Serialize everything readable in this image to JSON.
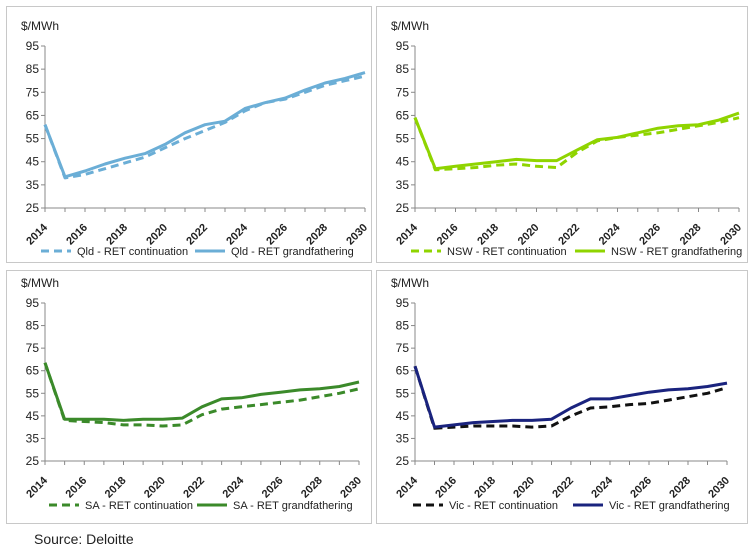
{
  "source": "Source: Deloitte",
  "chart_data": [
    {
      "type": "line",
      "ylabel": "$/MWh",
      "ylim": [
        25,
        95
      ],
      "yticks": [
        25,
        35,
        45,
        55,
        65,
        75,
        85,
        95
      ],
      "x": [
        2014,
        2015,
        2016,
        2017,
        2018,
        2019,
        2020,
        2021,
        2022,
        2023,
        2024,
        2025,
        2026,
        2027,
        2028,
        2029,
        2030
      ],
      "xticks": [
        2014,
        2016,
        2018,
        2020,
        2022,
        2024,
        2026,
        2028,
        2030
      ],
      "legend": "bottom",
      "series": [
        {
          "name": "Qld - RET continuation",
          "style": "dashed",
          "color": "#6baed6",
          "values": [
            61,
            38,
            39.5,
            42,
            44.5,
            47,
            51,
            55,
            58.5,
            62,
            67,
            70.5,
            72,
            75,
            78,
            80,
            82
          ]
        },
        {
          "name": "Qld - RET grandfathering",
          "style": "solid",
          "color": "#6baed6",
          "values": [
            61,
            38.5,
            41,
            44,
            46.5,
            48.5,
            52.5,
            57.5,
            61,
            62.5,
            68,
            70.5,
            72.5,
            76,
            79,
            81,
            83.5
          ]
        }
      ]
    },
    {
      "type": "line",
      "ylabel": "$/MWh",
      "ylim": [
        25,
        95
      ],
      "yticks": [
        25,
        35,
        45,
        55,
        65,
        75,
        85,
        95
      ],
      "x": [
        2014,
        2015,
        2016,
        2017,
        2018,
        2019,
        2020,
        2021,
        2022,
        2023,
        2024,
        2025,
        2026,
        2027,
        2028,
        2029,
        2030
      ],
      "xticks": [
        2014,
        2016,
        2018,
        2020,
        2022,
        2024,
        2026,
        2028,
        2030
      ],
      "legend": "bottom",
      "series": [
        {
          "name": "NSW - RET continuation",
          "style": "dashed",
          "color": "#8fd400",
          "values": [
            64,
            41.5,
            42,
            42.5,
            43.5,
            44,
            43,
            42.5,
            49,
            54,
            55.5,
            56.5,
            57.5,
            59,
            60.5,
            62,
            64
          ]
        },
        {
          "name": "NSW - RET grandfathering",
          "style": "solid",
          "color": "#8fd400",
          "values": [
            64,
            42,
            43,
            44,
            45,
            46,
            45.5,
            45.5,
            50,
            54.5,
            55.5,
            57.5,
            59.5,
            60.5,
            61,
            63,
            66
          ]
        }
      ]
    },
    {
      "type": "line",
      "ylabel": "$/MWh",
      "ylim": [
        25,
        95
      ],
      "yticks": [
        25,
        35,
        45,
        55,
        65,
        75,
        85,
        95
      ],
      "x": [
        2014,
        2015,
        2016,
        2017,
        2018,
        2019,
        2020,
        2021,
        2022,
        2023,
        2024,
        2025,
        2026,
        2027,
        2028,
        2029,
        2030
      ],
      "xticks": [
        2014,
        2016,
        2018,
        2020,
        2022,
        2024,
        2026,
        2028,
        2030
      ],
      "legend": "bottom",
      "series": [
        {
          "name": "SA - RET continuation",
          "style": "dashed",
          "color": "#3b8a2a",
          "values": [
            68.5,
            43,
            42.5,
            42,
            41,
            41,
            40.5,
            41,
            45.5,
            48,
            49,
            50,
            51,
            52,
            53.5,
            55,
            57
          ]
        },
        {
          "name": "SA - RET grandfathering",
          "style": "solid",
          "color": "#3b8a2a",
          "values": [
            68.5,
            43.5,
            43.5,
            43.5,
            43,
            43.5,
            43.5,
            44,
            49,
            52.5,
            53,
            54.5,
            55.5,
            56.5,
            57,
            58,
            60
          ]
        }
      ]
    },
    {
      "type": "line",
      "ylabel": "$/MWh",
      "ylim": [
        25,
        95
      ],
      "yticks": [
        25,
        35,
        45,
        55,
        65,
        75,
        85,
        95
      ],
      "x": [
        2014,
        2015,
        2016,
        2017,
        2018,
        2019,
        2020,
        2021,
        2022,
        2023,
        2024,
        2025,
        2026,
        2027,
        2028,
        2029,
        2030
      ],
      "xticks": [
        2014,
        2016,
        2018,
        2020,
        2022,
        2024,
        2026,
        2028,
        2030
      ],
      "legend": "bottom",
      "series": [
        {
          "name": "Vic - RET continuation",
          "style": "dashed",
          "color": "#111111",
          "values": [
            67,
            39.5,
            40,
            40.5,
            40.5,
            40.5,
            40,
            40.5,
            45,
            48.5,
            49,
            50,
            50.5,
            52,
            53.5,
            55,
            57.5
          ]
        },
        {
          "name": "Vic - RET grandfathering",
          "style": "solid",
          "color": "#1a237e",
          "values": [
            67,
            40,
            41,
            42,
            42.5,
            43,
            43,
            43.5,
            48.5,
            52.5,
            52.5,
            54,
            55.5,
            56.5,
            57,
            58,
            59.5
          ]
        }
      ]
    }
  ]
}
